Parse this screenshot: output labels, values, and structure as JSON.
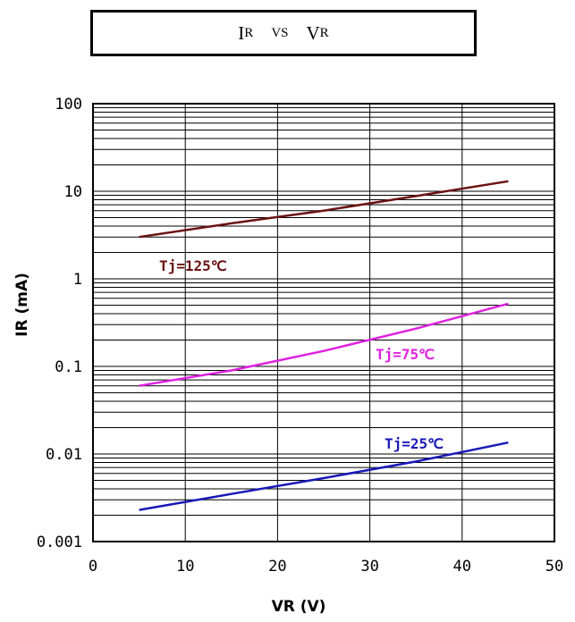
{
  "title": {
    "main1": "I",
    "sub1": "R",
    "mid": "VS",
    "main2": "V",
    "sub2": "R"
  },
  "chart_data": {
    "type": "line",
    "title": "IR VS VR",
    "xlabel": "VR (V)",
    "ylabel": "IR (mA)",
    "xlim": [
      0,
      50
    ],
    "ylim": [
      0.001,
      100
    ],
    "yscale": "log",
    "grid": true,
    "x_ticks": [
      0,
      10,
      20,
      30,
      40,
      50
    ],
    "x_tick_labels": [
      "0",
      "10",
      "20",
      "30",
      "40",
      "50"
    ],
    "y_ticks": [
      0.001,
      0.01,
      0.1,
      1,
      10,
      100
    ],
    "y_tick_labels": [
      "0.001",
      "0.01",
      "0.1",
      "1",
      "10",
      "100"
    ],
    "series": [
      {
        "name": "Tj=125℃",
        "color": "#6b1212",
        "x": [
          5,
          15,
          25,
          35,
          45
        ],
        "y": [
          3.0,
          4.3,
          6.0,
          8.8,
          13.0
        ]
      },
      {
        "name": "Tj=75℃",
        "color": "#e020e0",
        "x": [
          5,
          15,
          25,
          35,
          45
        ],
        "y": [
          0.06,
          0.09,
          0.15,
          0.27,
          0.52
        ]
      },
      {
        "name": "Tj=25℃",
        "color": "#1818b8",
        "x": [
          5,
          15,
          25,
          35,
          45
        ],
        "y": [
          0.0023,
          0.0035,
          0.0053,
          0.0082,
          0.0135
        ]
      }
    ]
  }
}
